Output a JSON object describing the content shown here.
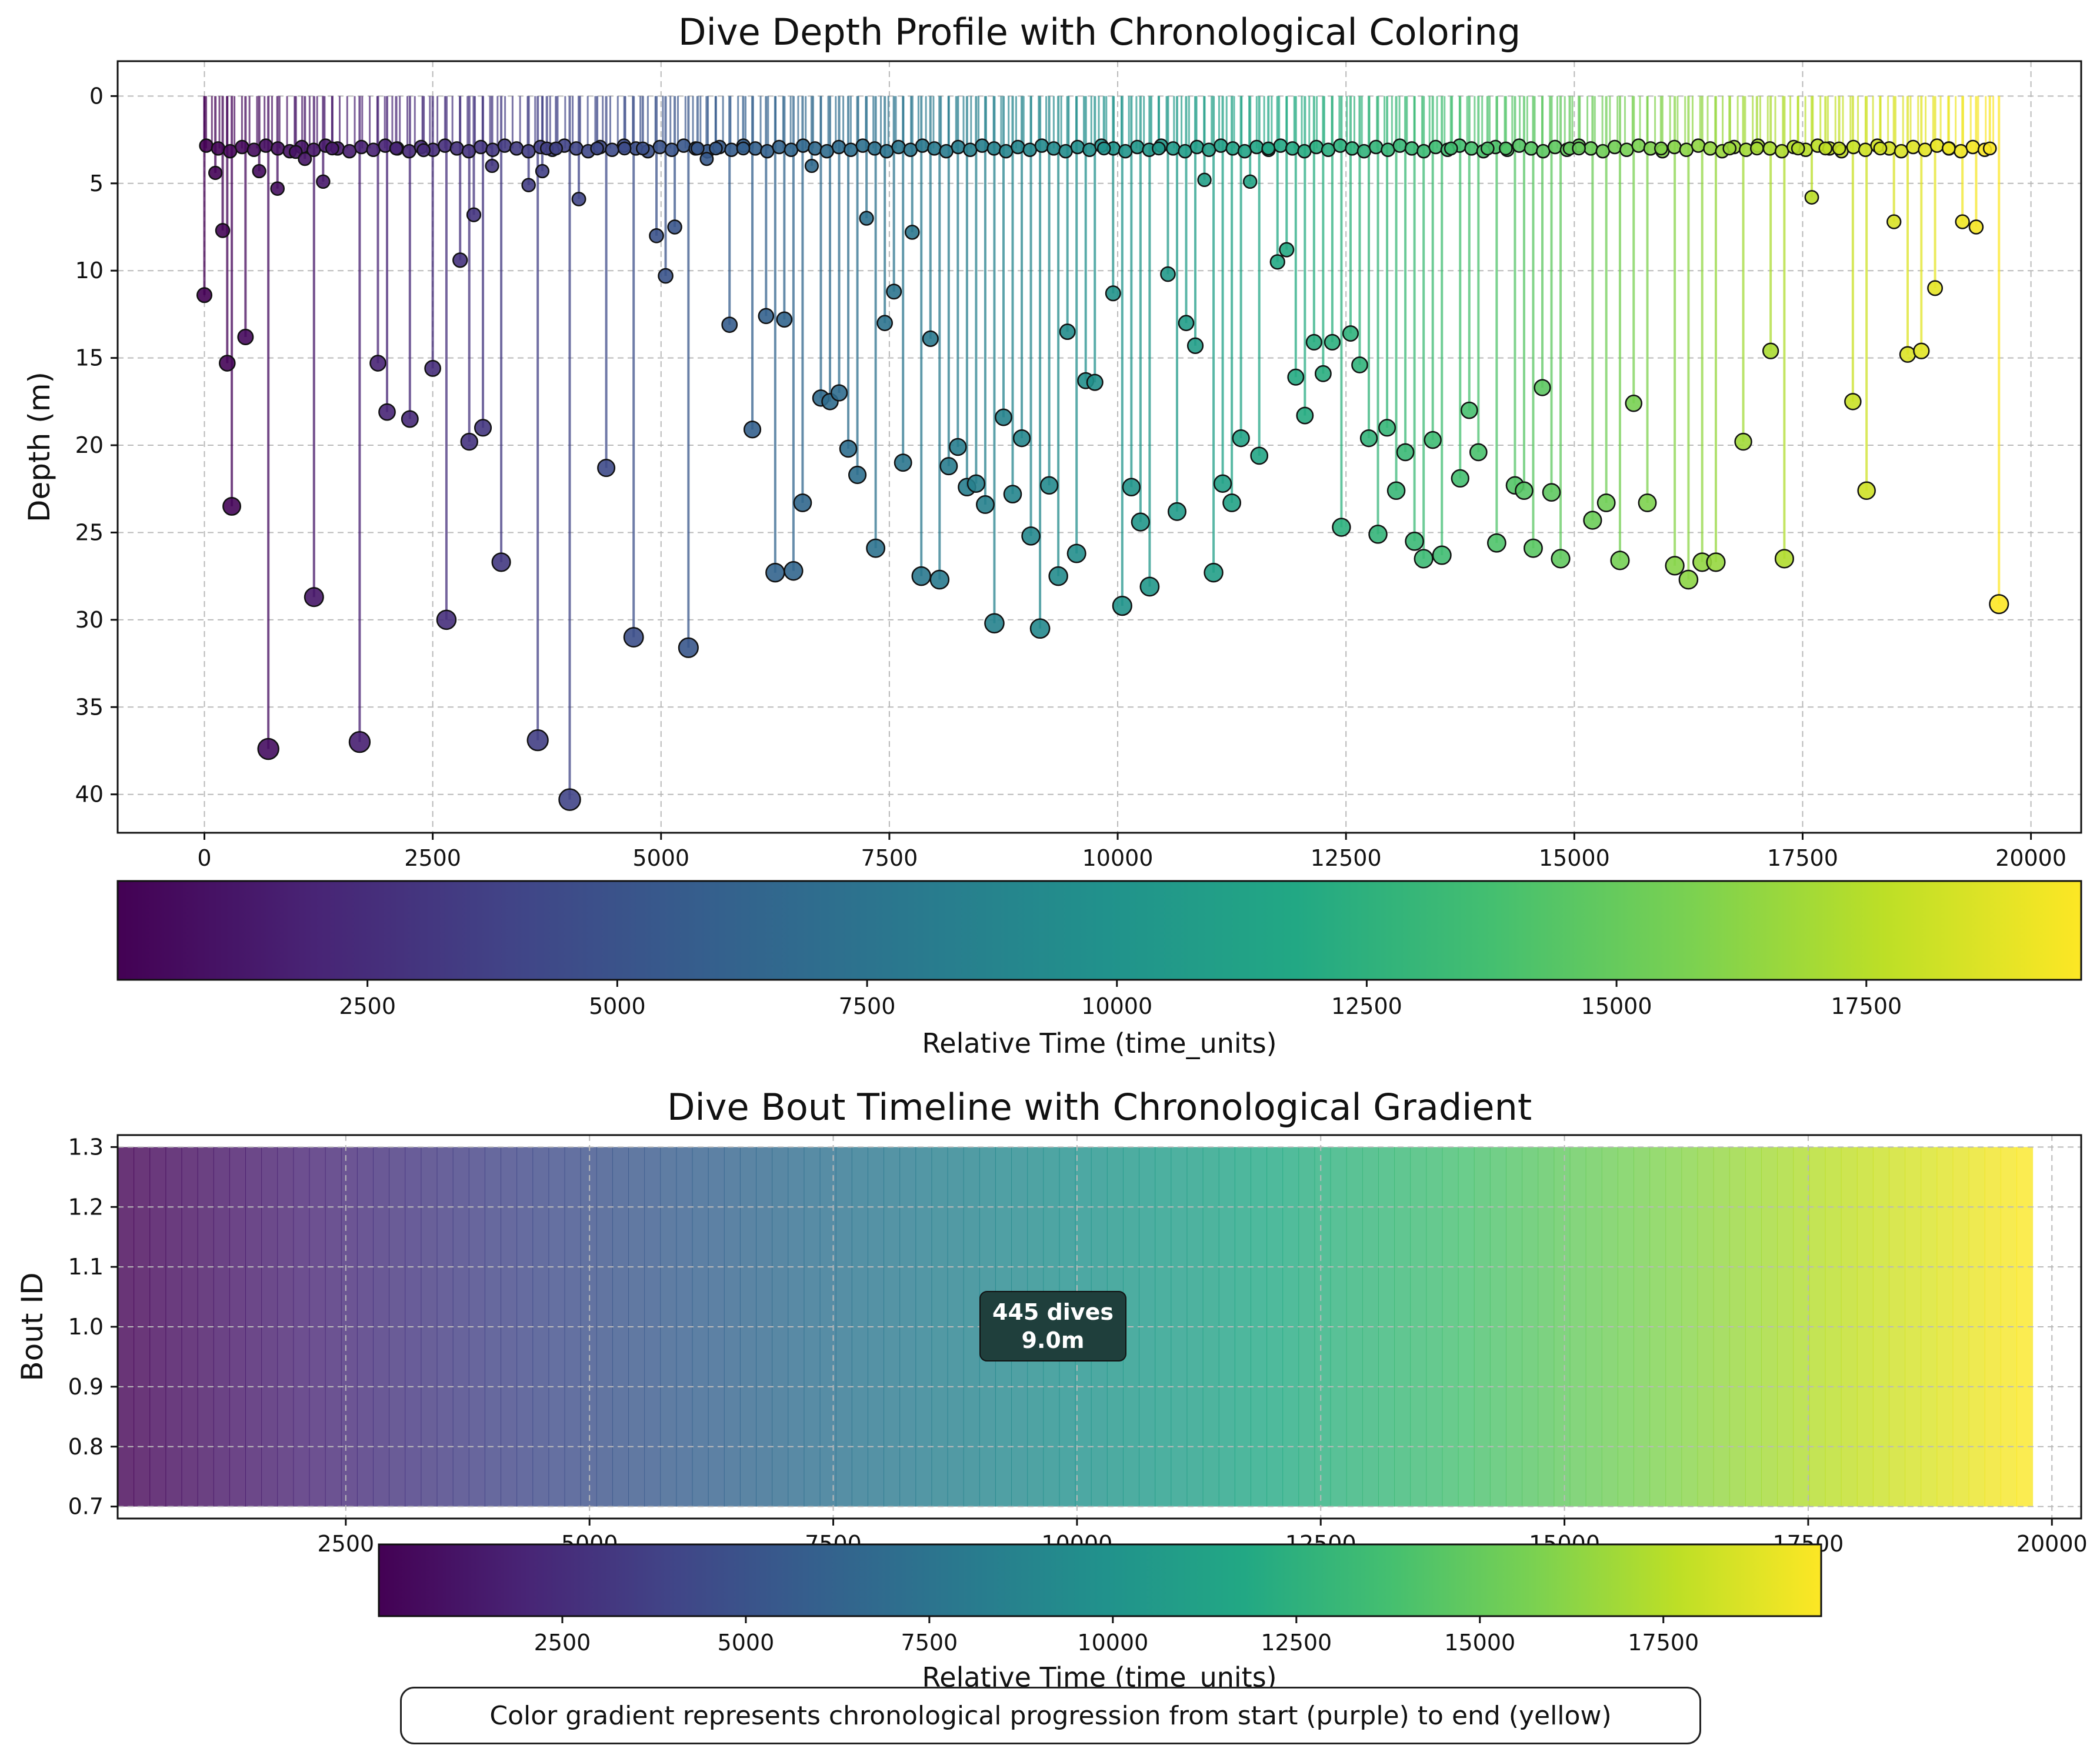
{
  "caption": "Color gradient represents chronological progression from start (purple) to end (yellow)",
  "colormap": {
    "name": "viridis",
    "start_color": "#440154",
    "end_color": "#fde725",
    "stops": [
      "#440154",
      "#482475",
      "#414487",
      "#355f8d",
      "#2a788e",
      "#21918c",
      "#22a884",
      "#44bf70",
      "#7ad151",
      "#bddf26",
      "#fde725"
    ]
  },
  "chart_data": [
    {
      "type": "scatter",
      "title": "Dive Depth Profile with Chronological Coloring",
      "xlabel": "",
      "ylabel": "Depth (m)",
      "xlim": [
        -950,
        20550
      ],
      "ylim": [
        42.2,
        -2
      ],
      "y_inverted": true,
      "x_ticks": [
        0,
        2500,
        5000,
        7500,
        10000,
        12500,
        15000,
        17500,
        20000
      ],
      "y_ticks": [
        0,
        5,
        10,
        15,
        20,
        25,
        30,
        35,
        40
      ],
      "grid": true,
      "color_by": "time",
      "points_x": [
        0,
        120,
        200,
        250,
        300,
        450,
        600,
        700,
        800,
        1000,
        1100,
        1200,
        1300,
        1400,
        1700,
        1900,
        2000,
        2100,
        2250,
        2400,
        2500,
        2650,
        2800,
        2900,
        2950,
        3050,
        3150,
        3250,
        3550,
        3650,
        3700,
        3750,
        3850,
        4000,
        4100,
        4300,
        4400,
        4600,
        4700,
        4800,
        4950,
        5050,
        5150,
        5300,
        5400,
        5500,
        5600,
        5750,
        5900,
        6000,
        6150,
        6250,
        6350,
        6450,
        6550,
        6650,
        6750,
        6850,
        6950,
        7050,
        7150,
        7250,
        7350,
        7450,
        7550,
        7650,
        7750,
        7850,
        7950,
        8050,
        8150,
        8250,
        8350,
        8450,
        8550,
        8650,
        8750,
        8850,
        8950,
        9050,
        9150,
        9250,
        9350,
        9450,
        9550,
        9650,
        9750,
        9850,
        9950,
        10050,
        10150,
        10250,
        10350,
        10450,
        10550,
        10650,
        10750,
        10850,
        10950,
        11050,
        11150,
        11250,
        11350,
        11450,
        11550,
        11650,
        11750,
        11850,
        11950,
        12050,
        12150,
        12250,
        12350,
        12450,
        12550,
        12650,
        12750,
        12850,
        12950,
        13050,
        13150,
        13250,
        13350,
        13450,
        13550,
        13650,
        13750,
        13850,
        13950,
        14050,
        14150,
        14250,
        14350,
        14450,
        14550,
        14650,
        14750,
        14850,
        14950,
        15050,
        15200,
        15350,
        15500,
        15650,
        15800,
        15950,
        16100,
        16250,
        16400,
        16550,
        16700,
        16850,
        17000,
        17150,
        17300,
        17450,
        17600,
        17750,
        17900,
        18050,
        18200,
        18350,
        18500,
        18650,
        18800,
        18950,
        19100,
        19250,
        19400,
        19550,
        19650
      ],
      "points_depth": [
        11.4,
        4.4,
        7.7,
        15.3,
        23.5,
        13.8,
        4.3,
        37.4,
        5.3,
        3.2,
        3.6,
        28.7,
        4.9,
        3.0,
        37.0,
        15.3,
        18.1,
        3.0,
        18.5,
        3.1,
        15.6,
        30.0,
        9.4,
        19.8,
        6.8,
        19.0,
        4.0,
        26.7,
        5.1,
        36.9,
        4.3,
        3.0,
        3.0,
        40.3,
        5.9,
        3.0,
        21.3,
        3.0,
        31.0,
        3.0,
        8.0,
        10.3,
        7.5,
        31.6,
        3.0,
        3.6,
        3.0,
        13.1,
        3.0,
        19.1,
        12.6,
        27.3,
        12.8,
        27.2,
        23.3,
        4.0,
        17.3,
        17.5,
        17.0,
        20.2,
        21.7,
        7.0,
        25.9,
        13.0,
        11.2,
        21.0,
        7.8,
        27.5,
        13.9,
        27.7,
        21.2,
        20.1,
        22.4,
        22.2,
        23.4,
        30.2,
        18.4,
        22.8,
        19.6,
        25.2,
        30.5,
        22.3,
        27.5,
        13.5,
        26.2,
        16.3,
        16.4,
        3.0,
        11.3,
        29.2,
        22.4,
        24.4,
        28.1,
        3.0,
        10.2,
        23.8,
        13.0,
        14.3,
        4.8,
        27.3,
        22.2,
        23.3,
        19.6,
        4.9,
        20.6,
        3.0,
        9.5,
        8.8,
        16.1,
        18.3,
        14.1,
        15.9,
        14.1,
        24.7,
        13.6,
        15.4,
        19.6,
        25.1,
        19.0,
        22.6,
        20.4,
        25.5,
        26.5,
        19.7,
        26.3,
        3.0,
        21.9,
        18.0,
        20.4,
        3.0,
        25.6,
        3.0,
        22.3,
        22.6,
        25.9,
        16.7,
        22.7,
        26.5,
        3.0,
        3.0,
        24.3,
        23.3,
        26.6,
        17.6,
        23.3,
        3.0,
        26.9,
        27.7,
        26.7,
        26.7,
        3.0,
        19.8,
        3.0,
        14.6,
        26.5,
        3.0,
        5.8,
        3.0,
        3.0,
        17.5,
        22.6,
        3.0,
        7.2,
        14.8,
        14.6,
        11.0,
        3.0,
        7.2,
        7.5,
        3.0,
        29.1
      ],
      "surface_depth": 3.0,
      "surface_marker_count": 445
    },
    {
      "type": "bar",
      "orientation": "horizontal",
      "title": "Dive Bout Timeline with Chronological Gradient",
      "xlabel": "",
      "ylabel": "Bout ID",
      "xlim": [
        160,
        20300
      ],
      "ylim": [
        0.68,
        1.32
      ],
      "x_ticks": [
        2500,
        5000,
        7500,
        10000,
        12500,
        15000,
        17500,
        20000
      ],
      "y_ticks": [
        0.7,
        0.8,
        0.9,
        1.0,
        1.1,
        1.2,
        1.3
      ],
      "y_tick_labels": [
        "0.7",
        "0.8",
        "0.9",
        "1.0",
        "1.1",
        "1.2",
        "1.3"
      ],
      "grid": true,
      "bars": [
        {
          "bout_id": 1,
          "start": 0,
          "end": 19800,
          "y_low": 0.7,
          "y_high": 1.3
        }
      ],
      "annotation": {
        "line1": "445 dives",
        "line2": "9.0m",
        "x": 9850,
        "y": 1.0
      }
    }
  ],
  "colorbars": [
    {
      "label": "Relative Time (time_units)",
      "range": [
        0,
        19650
      ],
      "ticks": [
        2500,
        5000,
        7500,
        10000,
        12500,
        15000,
        17500
      ]
    },
    {
      "label": "Relative Time (time_units)",
      "range": [
        0,
        19650
      ],
      "ticks": [
        2500,
        5000,
        7500,
        10000,
        12500,
        15000,
        17500
      ]
    }
  ]
}
